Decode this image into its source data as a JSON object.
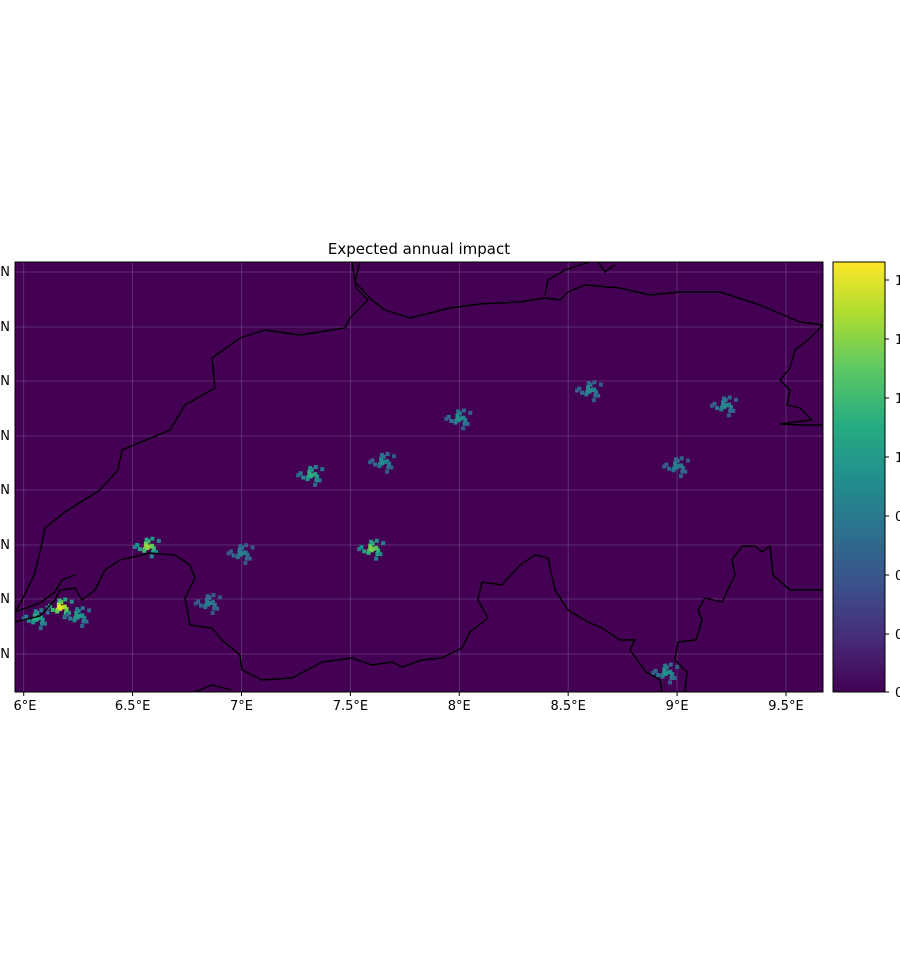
{
  "title": "Expected annual impact",
  "x_axis": {
    "ticks": [
      {
        "lon": 6.0,
        "label": "6°E"
      },
      {
        "lon": 6.5,
        "label": "6.5°E"
      },
      {
        "lon": 7.0,
        "label": "7°E"
      },
      {
        "lon": 7.5,
        "label": "7.5°E"
      },
      {
        "lon": 8.0,
        "label": "8°E"
      },
      {
        "lon": 8.5,
        "label": "8.5°E"
      },
      {
        "lon": 9.0,
        "label": "9°E"
      },
      {
        "lon": 9.5,
        "label": "9.5°E"
      }
    ]
  },
  "y_axis": {
    "tick_labels": [
      "N",
      "N",
      "N",
      "N",
      "N",
      "N",
      "N",
      "N"
    ]
  },
  "colorbar": {
    "colormap": "viridis",
    "tick_labels": [
      "1",
      "1",
      "1",
      "1",
      "0",
      "0",
      "0",
      "0"
    ]
  },
  "colors": {
    "background_min": "#440154",
    "max": "#fde725"
  },
  "chart_data": {
    "type": "heatmap",
    "title": "Expected annual impact",
    "x_range_lon": [
      5.96,
      9.67
    ],
    "gridlines": true,
    "colormap": "viridis",
    "hotspots": [
      {
        "lon": 6.06,
        "lat": 46.2,
        "level": 0.55
      },
      {
        "lon": 6.17,
        "lat": 46.25,
        "level": 0.95
      },
      {
        "lon": 6.25,
        "lat": 46.21,
        "level": 0.45
      },
      {
        "lon": 6.57,
        "lat": 46.53,
        "level": 0.8
      },
      {
        "lon": 7.0,
        "lat": 46.5,
        "level": 0.3
      },
      {
        "lon": 7.32,
        "lat": 46.86,
        "level": 0.55
      },
      {
        "lon": 7.6,
        "lat": 46.52,
        "level": 0.75
      },
      {
        "lon": 7.65,
        "lat": 46.92,
        "level": 0.35
      },
      {
        "lon": 8.0,
        "lat": 47.12,
        "level": 0.4
      },
      {
        "lon": 8.6,
        "lat": 47.25,
        "level": 0.35
      },
      {
        "lon": 9.22,
        "lat": 47.18,
        "level": 0.35
      },
      {
        "lon": 9.0,
        "lat": 46.9,
        "level": 0.3
      },
      {
        "lon": 8.95,
        "lat": 45.95,
        "level": 0.4
      },
      {
        "lon": 6.85,
        "lat": 46.27,
        "level": 0.3
      }
    ]
  }
}
